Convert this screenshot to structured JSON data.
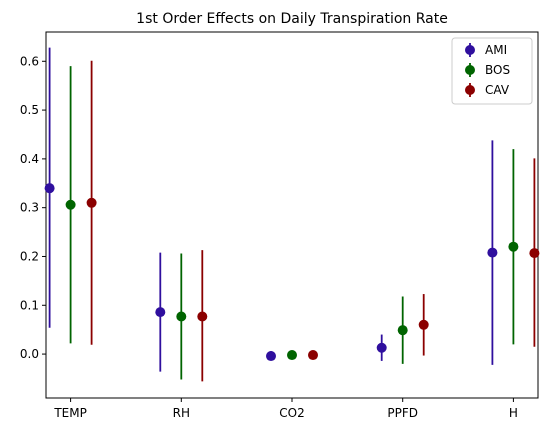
{
  "chart_data": {
    "type": "scatter",
    "title": "1st Order Effects on Daily Transpiration Rate",
    "xlabel": "",
    "ylabel": "",
    "categories": [
      "TEMP",
      "RH",
      "CO2",
      "PPFD",
      "H"
    ],
    "ylim": [
      -0.09,
      0.66
    ],
    "yticks": [
      "0.0",
      "0.1",
      "0.2",
      "0.3",
      "0.4",
      "0.5",
      "0.6"
    ],
    "grid": false,
    "legend_position": "top-right",
    "series": [
      {
        "name": "AMI",
        "color": "#2f0f9e",
        "values": [
          0.34,
          0.086,
          -0.004,
          0.013,
          0.208
        ],
        "lower": [
          0.054,
          -0.036,
          -0.012,
          -0.014,
          -0.022
        ],
        "upper": [
          0.628,
          0.208,
          0.006,
          0.04,
          0.438
        ]
      },
      {
        "name": "BOS",
        "color": "#006400",
        "values": [
          0.306,
          0.077,
          -0.002,
          0.049,
          0.22
        ],
        "lower": [
          0.022,
          -0.052,
          -0.004,
          -0.02,
          0.02
        ],
        "upper": [
          0.59,
          0.206,
          0.002,
          0.118,
          0.42
        ]
      },
      {
        "name": "CAV",
        "color": "#8b0000",
        "values": [
          0.31,
          0.077,
          -0.002,
          0.06,
          0.207
        ],
        "lower": [
          0.019,
          -0.056,
          -0.004,
          -0.003,
          0.015
        ],
        "upper": [
          0.601,
          0.213,
          0.002,
          0.123,
          0.401
        ]
      }
    ]
  }
}
